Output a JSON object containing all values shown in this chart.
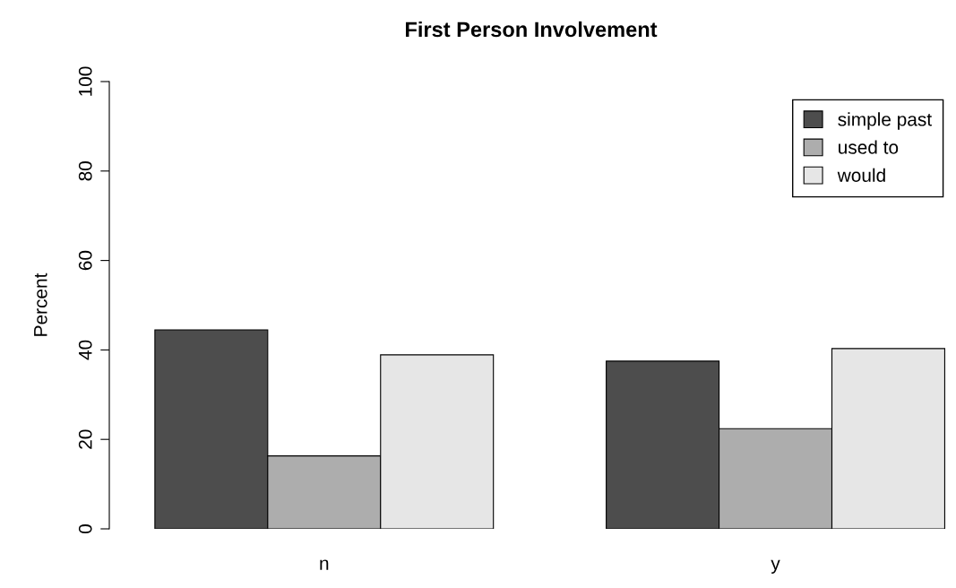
{
  "chart_data": {
    "type": "bar",
    "title": "First Person Involvement",
    "ylabel": "Percent",
    "categories": [
      "n",
      "y"
    ],
    "series": [
      {
        "name": "simple past",
        "color": "#4d4d4d",
        "values": [
          44.5,
          37.5
        ]
      },
      {
        "name": "used to",
        "color": "#adadad",
        "values": [
          16.3,
          22.4
        ]
      },
      {
        "name": "would",
        "color": "#e6e6e6",
        "values": [
          38.9,
          40.3
        ]
      }
    ],
    "ylim": [
      0,
      100
    ],
    "yticks": [
      0,
      20,
      40,
      60,
      80,
      100
    ],
    "grid": false,
    "legend": "top right"
  }
}
